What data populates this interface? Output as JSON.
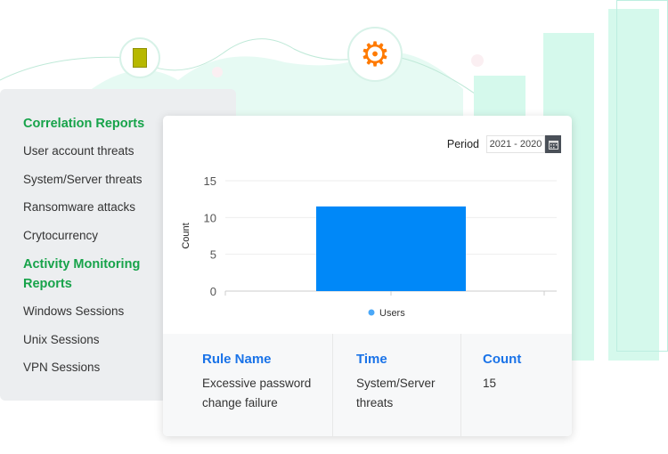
{
  "sidebar": {
    "sections": [
      {
        "title": "Correlation Reports",
        "items": [
          "User account threats",
          "System/Server threats",
          "Ransomware attacks",
          "Crytocurrency"
        ]
      },
      {
        "title": "Activity Monitoring Reports",
        "items": [
          "Windows Sessions",
          "Unix Sessions",
          "VPN Sessions"
        ]
      }
    ]
  },
  "period": {
    "label": "Period",
    "value": "2021 - 2020"
  },
  "chart_data": {
    "type": "bar",
    "ylabel": "Count",
    "ylim": [
      0,
      15
    ],
    "yticks": [
      0,
      5,
      10,
      15
    ],
    "grid": true,
    "legend_position": "bottom",
    "series": [
      {
        "name": "Users",
        "values": [
          11.5
        ],
        "color": "#0088f8"
      }
    ]
  },
  "table": {
    "headers": [
      "Rule Name",
      "Time",
      "Count"
    ],
    "rows": [
      [
        "Excessive password change failure",
        "System/Server threats",
        "15"
      ]
    ]
  },
  "colors": {
    "accent_green": "#17a34a",
    "header_blue": "#1a73e8",
    "bar_blue": "#0088f8",
    "gear_orange": "#ff7a00"
  }
}
